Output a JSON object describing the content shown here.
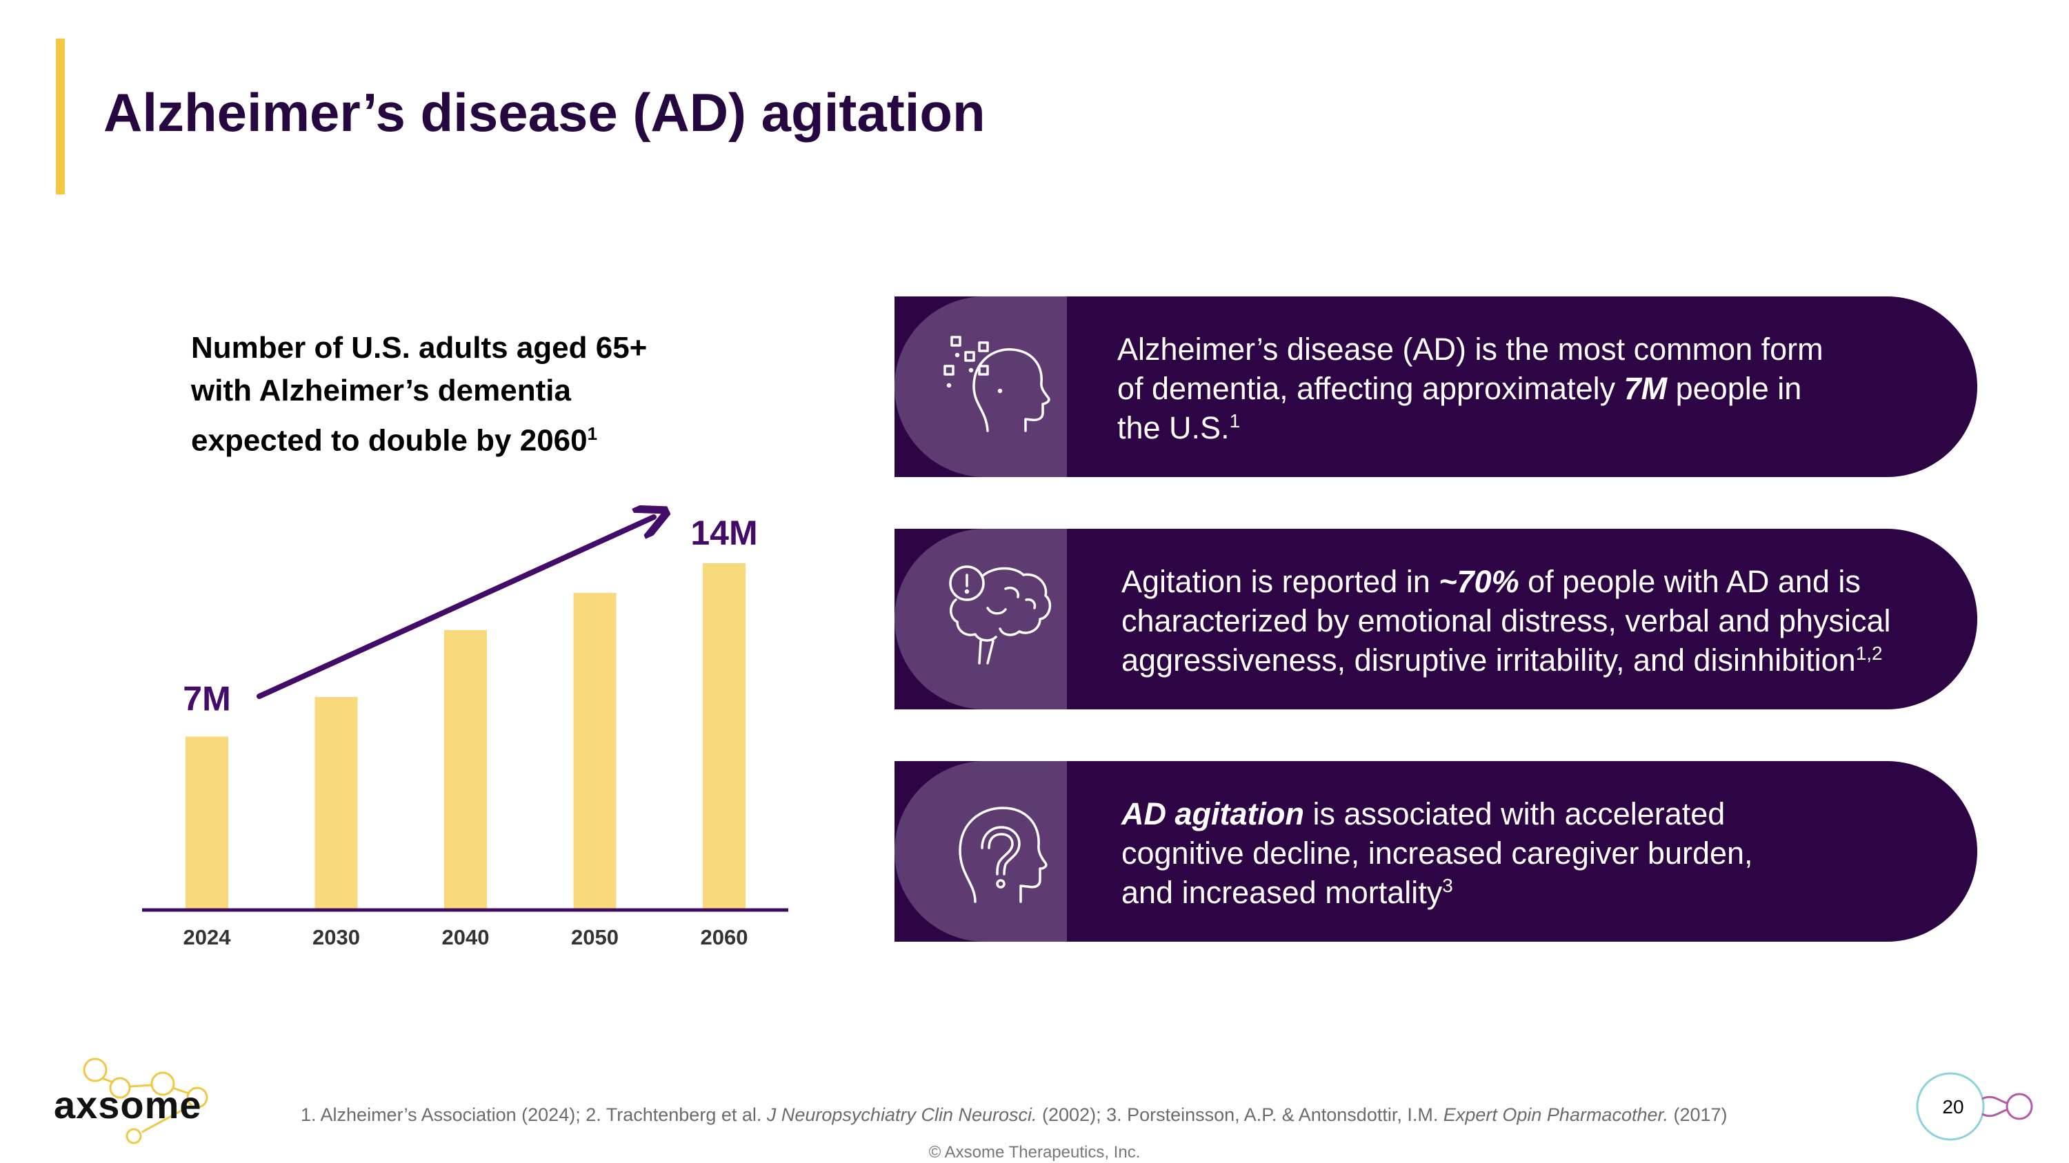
{
  "title": "Alzheimer’s disease (AD) agitation",
  "chart_heading": {
    "line1": "Number of U.S. adults aged 65+",
    "line2": "with Alzheimer’s dementia",
    "line3": "expected to double by 2060",
    "sup": "1"
  },
  "chart_data": {
    "type": "bar",
    "title": "Number of U.S. adults aged 65+ with Alzheimer’s dementia expected to double by 2060",
    "categories": [
      "2024",
      "2030",
      "2040",
      "2050",
      "2060"
    ],
    "values": [
      7,
      8.6,
      11.3,
      12.8,
      14
    ],
    "unit": "M",
    "ylim": [
      0,
      14
    ],
    "annotations": [
      "7M",
      "14M"
    ],
    "trend": "arrow from 2024 to 2060",
    "xlabel": "",
    "ylabel": "",
    "colors": {
      "bar": "#f8d97b",
      "axis": "#3e0b5f",
      "arrow": "#430c68",
      "label": "#430c68"
    }
  },
  "facts": [
    {
      "icon": "head-thoughts-icon",
      "line1": "Alzheimer’s disease (AD) is the most common form",
      "line2_pre": "of dementia, affecting approximately ",
      "line2_em": "7M",
      "line2_post": " people in",
      "line3": "the U.S.",
      "line3_sup": "1"
    },
    {
      "icon": "brain-alert-icon",
      "line1_pre": "Agitation is reported in ",
      "line1_em": "~70%",
      "line1_post": " of people with AD and is",
      "line2": "characterized by emotional distress, verbal and physical",
      "line3": "aggressiveness, disruptive irritability, and disinhibition",
      "line3_sup": "1,2"
    },
    {
      "icon": "head-question-icon",
      "line1_em": "AD agitation",
      "line1_post": " is associated with accelerated",
      "line2": "cognitive decline, increased caregiver burden,",
      "line3": "and increased mortality",
      "line3_sup": "3"
    }
  ],
  "footer": {
    "logo": "axsome",
    "ref1": "1. Alzheimer’s Association (2024); 2. Trachtenberg et al. ",
    "ref1_journal": "J Neuropsychiatry Clin Neurosci.",
    "ref2": " (2002); 3. Porsteinsson, A.P. & Antonsdottir, I.M. ",
    "ref2_journal": "Expert Opin Pharmacother.",
    "ref3": " (2017)",
    "copyright": "© Axsome Therapeutics, Inc.",
    "page_number": "20"
  },
  "colors": {
    "primary": "#2d0444",
    "secondary": "#5e3c72",
    "accent": "#f4c842"
  }
}
